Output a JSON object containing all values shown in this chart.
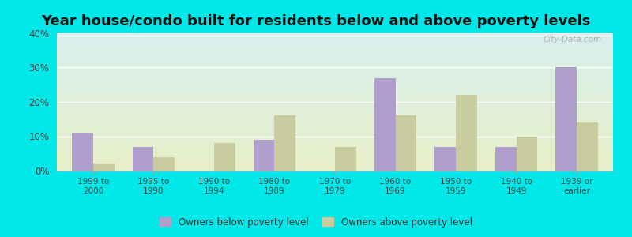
{
  "title": "Year house/condo built for residents below and above poverty levels",
  "categories": [
    "1999 to\n2000",
    "1995 to\n1998",
    "1990 to\n1994",
    "1980 to\n1989",
    "1970 to\n1979",
    "1960 to\n1969",
    "1950 to\n1959",
    "1940 to\n1949",
    "1939 or\nearlier"
  ],
  "below_poverty": [
    11,
    7,
    0,
    9,
    0,
    27,
    7,
    7,
    30
  ],
  "above_poverty": [
    2,
    4,
    8,
    16,
    7,
    16,
    22,
    10,
    14
  ],
  "below_color": "#b09fcc",
  "above_color": "#c8cc9f",
  "bg_color_top": "#d8f0ee",
  "bg_color_bottom": "#e8efc8",
  "outer_bg": "#00e8e8",
  "ylim": [
    0,
    40
  ],
  "yticks": [
    0,
    10,
    20,
    30,
    40
  ],
  "legend_below": "Owners below poverty level",
  "legend_above": "Owners above poverty level",
  "title_fontsize": 13,
  "bar_width": 0.35
}
